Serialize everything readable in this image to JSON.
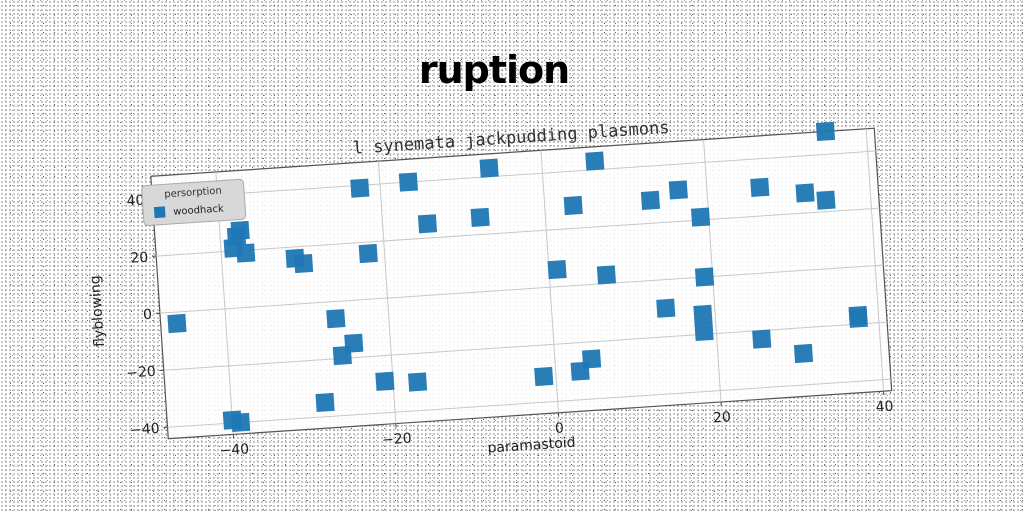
{
  "suptitle": "ruption",
  "chart_data": {
    "type": "scatter",
    "title": "l synemata jackpudding plasmons",
    "xlabel": "paramastoid",
    "ylabel": "flyblowing",
    "xlim": [
      -48,
      41
    ],
    "ylim": [
      -44,
      48
    ],
    "xticks": [
      -40,
      -20,
      0,
      20,
      40
    ],
    "xtick_labels": [
      "−40",
      "−20",
      "0",
      "20",
      "40"
    ],
    "yticks": [
      -40,
      -20,
      0,
      20,
      40
    ],
    "ytick_labels": [
      "−40",
      "−20",
      "0",
      "20",
      "40"
    ],
    "grid": true,
    "legend": {
      "title": "persorption",
      "placement": "top-left"
    },
    "series": [
      {
        "name": "woodhack",
        "color": "#1f77b4",
        "marker": "square",
        "points": [
          [
            -46,
            -4
          ],
          [
            -38.5,
            21
          ],
          [
            -38,
            25
          ],
          [
            -37.5,
            27
          ],
          [
            -37,
            19
          ],
          [
            -40,
            -39
          ],
          [
            -39,
            -40
          ],
          [
            -31,
            16
          ],
          [
            -30,
            14
          ],
          [
            -28.5,
            -35
          ],
          [
            -26.5,
            -6
          ],
          [
            -26,
            -19
          ],
          [
            -24.5,
            -15
          ],
          [
            -22.5,
            39
          ],
          [
            -22,
            16
          ],
          [
            -21,
            -29
          ],
          [
            -17,
            -30
          ],
          [
            -16.5,
            40
          ],
          [
            -14.5,
            25
          ],
          [
            -8,
            26
          ],
          [
            -6.5,
            43
          ],
          [
            -1.5,
            -31
          ],
          [
            1,
            6
          ],
          [
            3,
            -30
          ],
          [
            3.5,
            28
          ],
          [
            4.5,
            -26
          ],
          [
            6.5,
            43
          ],
          [
            7,
            3
          ],
          [
            13,
            28
          ],
          [
            14,
            -10
          ],
          [
            16.5,
            31
          ],
          [
            18.5,
            -13
          ],
          [
            18.5,
            -19
          ],
          [
            19,
            21
          ],
          [
            19,
            0
          ],
          [
            25.5,
            -23
          ],
          [
            26.5,
            30
          ],
          [
            30.5,
            -29
          ],
          [
            32,
            27
          ],
          [
            34.5,
            24
          ],
          [
            35,
            48
          ],
          [
            37.5,
            -18
          ],
          [
            37.5,
            -17
          ]
        ]
      }
    ]
  }
}
